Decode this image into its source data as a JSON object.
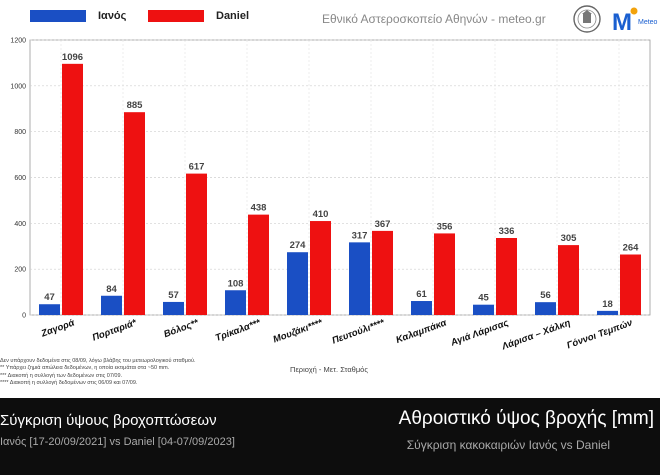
{
  "header": {
    "source_text": "Εθνικό Αστεροσκοπείο Αθηνών - meteo.gr",
    "meteo_logo_text": "Meteo"
  },
  "legend": [
    {
      "name": "Ιανός",
      "color": "#1a4fc4"
    },
    {
      "name": "Daniel",
      "color": "#ee1111"
    }
  ],
  "chart_data": {
    "type": "bar",
    "categories": [
      "Ζαγορά",
      "Πορταριά*",
      "Βόλος**",
      "Τρίκαλα***",
      "Μουζάκι****",
      "Πευτούλι****",
      "Καλαμπάκα",
      "Αγιά Λάρισας",
      "Λάρισα – Χάλκη",
      "Γόννοι Τεμπών"
    ],
    "series": [
      {
        "name": "Ιανός",
        "values": [
          47,
          84,
          57,
          108,
          274,
          317,
          61,
          45,
          56,
          18
        ]
      },
      {
        "name": "Daniel",
        "values": [
          1096,
          885,
          617,
          438,
          410,
          367,
          356,
          336,
          305,
          264
        ]
      }
    ],
    "y_ticks": [
      "0",
      "200",
      "400",
      "600",
      "800",
      "1000",
      "1200"
    ],
    "ylim": [
      0,
      1200
    ],
    "xlabel": "Περιοχή - Μετ. Σταθμός",
    "grid": true,
    "legend_position": "top-left"
  },
  "notes": [
    "Δεν υπάρχουν δεδομένα στις 08/09, λόγω βλάβης του μετεωρολογικού σταθμού.",
    "** Υπάρχει ζημιά απώλεια δεδομένων, η οποία εκτιμάται στα ~50 mm.",
    "*** Διακοπή η συλλογή των δεδομένων στις 07/09.",
    "**** Διακοπή η συλλογή δεδομένων στις 06/09 και 07/09."
  ],
  "footer": {
    "left_title": "Σύγκριση ύψους βροχοπτώσεων",
    "left_subtitle": "Ιανός [17-20/09/2021] vs Daniel [04-07/09/2023]",
    "right_title": "Αθροιστικό ύψος βροχής [mm]",
    "right_subtitle": "Σύγκριση κακοκαιριών Ιανός vs Daniel"
  }
}
